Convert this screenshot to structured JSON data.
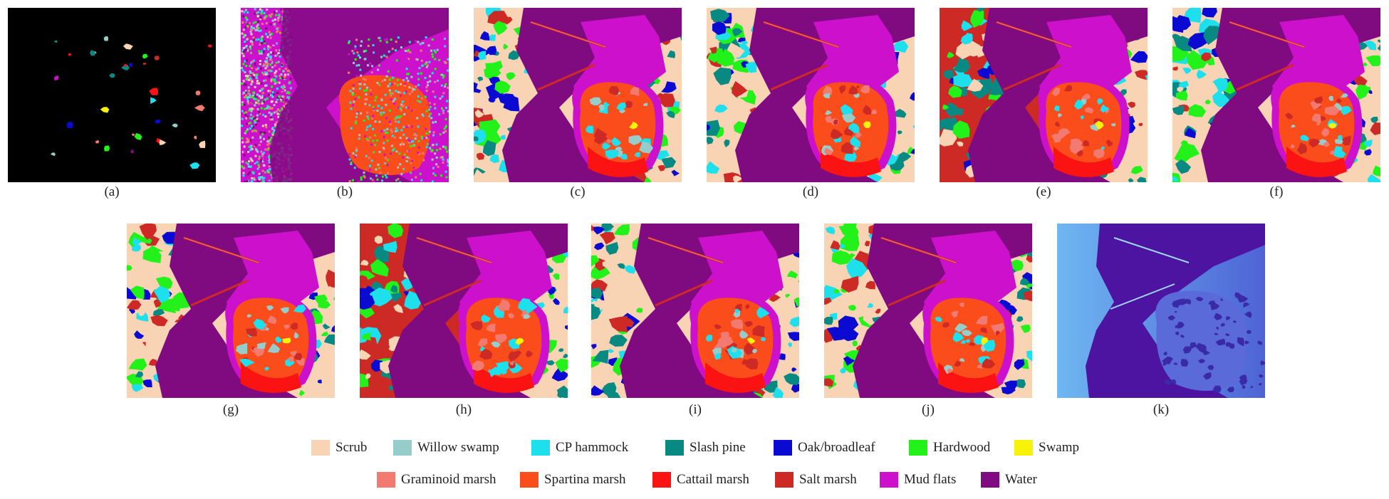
{
  "panels": [
    {
      "label": "(a)",
      "kind": "gt"
    },
    {
      "label": "(b)",
      "kind": "noisy"
    },
    {
      "label": "(c)",
      "kind": "map",
      "variant": 1
    },
    {
      "label": "(d)",
      "kind": "map",
      "variant": 2
    },
    {
      "label": "(e)",
      "kind": "map",
      "variant": 3
    },
    {
      "label": "(f)",
      "kind": "map",
      "variant": 4
    },
    {
      "label": "(g)",
      "kind": "map",
      "variant": 5
    },
    {
      "label": "(h)",
      "kind": "map",
      "variant": 6
    },
    {
      "label": "(i)",
      "kind": "map",
      "variant": 7
    },
    {
      "label": "(j)",
      "kind": "map",
      "variant": 8
    },
    {
      "label": "(k)",
      "kind": "false-color"
    }
  ],
  "legend": [
    {
      "label": "Scrub",
      "color": "#f9d4b4"
    },
    {
      "label": "Willow swamp",
      "color": "#96cdca"
    },
    {
      "label": "CP hammock",
      "color": "#1ee0ec"
    },
    {
      "label": "Slash pine",
      "color": "#088a82"
    },
    {
      "label": "Oak/broadleaf",
      "color": "#0a0ad2"
    },
    {
      "label": "Hardwood",
      "color": "#22f21a"
    },
    {
      "label": "Swamp",
      "color": "#f8f20a"
    },
    {
      "label": "Graminoid marsh",
      "color": "#f37a70"
    },
    {
      "label": "Spartina marsh",
      "color": "#fb4d1b"
    },
    {
      "label": "Cattail marsh",
      "color": "#fb1212"
    },
    {
      "label": "Salt marsh",
      "color": "#cd2a26"
    },
    {
      "label": "Mud flats",
      "color": "#cc10cc"
    },
    {
      "label": "Water",
      "color": "#800a80"
    }
  ]
}
